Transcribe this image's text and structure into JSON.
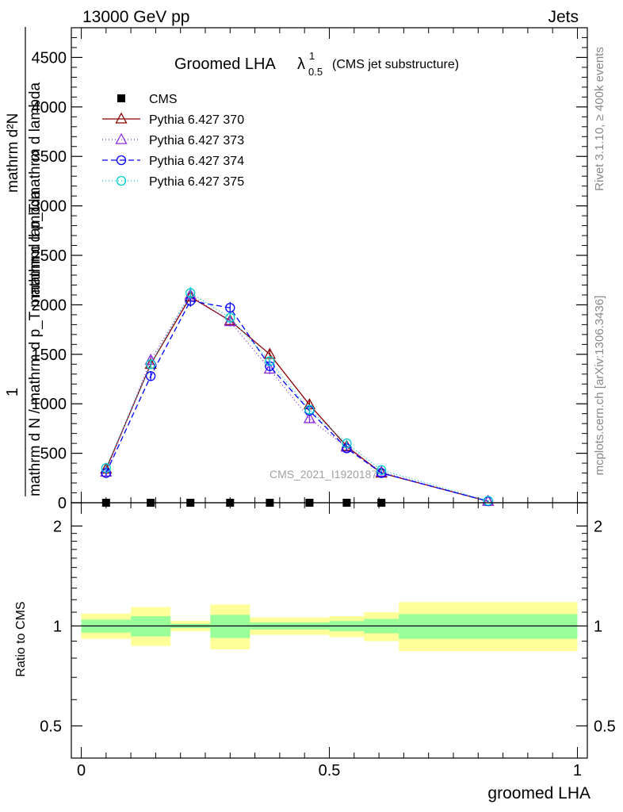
{
  "header": {
    "left": "13000 GeV pp",
    "right": "Jets"
  },
  "side_text": {
    "rivet": "Rivet 3.1.10, ≥ 400k events",
    "mcplots": "mcplots.cern.ch [arXiv:1306.3436]"
  },
  "watermark": "CMS_2021_I1920187",
  "chart_data": [
    {
      "type": "line",
      "title": {
        "main": "Groomed LHA",
        "lambda": "λ",
        "sup": "1",
        "sub": "0.5",
        "note": "(CMS jet substructure)"
      },
      "ylabel": {
        "numerator": "1",
        "denominator": "mathrm d N / mathrm d p_T mathrm d lambda",
        "right_numerator": "mathrm d²N",
        "right_denominator": "mathrm d p_T mathrm d lambda"
      },
      "ylim": [
        0,
        4800
      ],
      "yticks": [
        {
          "value": 0,
          "label": "0"
        },
        {
          "value": 500,
          "label": "500"
        },
        {
          "value": 1000,
          "label": "1000"
        },
        {
          "value": 1500,
          "label": "1500"
        },
        {
          "value": 2000,
          "label": "2000"
        },
        {
          "value": 2500,
          "label": "2500"
        },
        {
          "value": 3000,
          "label": "3000"
        },
        {
          "value": 3500,
          "label": "3500"
        },
        {
          "value": 4000,
          "label": "4000"
        },
        {
          "value": 4500,
          "label": "4500"
        }
      ],
      "xlim": [
        -0.02,
        1.02
      ],
      "legend_position": "top-left",
      "series": [
        {
          "name": "CMS",
          "color": "#000000",
          "marker": "filled-square",
          "x": [
            0.05,
            0.14,
            0.22,
            0.3,
            0.38,
            0.46,
            0.535,
            0.605
          ],
          "y": [
            0,
            0,
            0,
            0,
            0,
            0,
            0,
            0
          ]
        },
        {
          "name": "Pythia 6.427 370",
          "color": "#8b0000",
          "marker": "triangle",
          "dash": "",
          "x": [
            0.05,
            0.14,
            0.22,
            0.3,
            0.38,
            0.46,
            0.535,
            0.605,
            0.82
          ],
          "y": [
            340,
            1400,
            2080,
            1840,
            1500,
            990,
            570,
            300,
            15
          ],
          "err": [
            30,
            50,
            60,
            50,
            50,
            40,
            30,
            20,
            5
          ]
        },
        {
          "name": "Pythia 6.427 373",
          "color": "#8a2be2",
          "marker": "triangle",
          "dash": "1,3",
          "x": [
            0.05,
            0.14,
            0.22,
            0.3,
            0.38,
            0.46,
            0.535,
            0.605,
            0.82
          ],
          "y": [
            310,
            1440,
            2100,
            1830,
            1350,
            850,
            560,
            310,
            15
          ],
          "err": [
            30,
            50,
            60,
            50,
            50,
            40,
            30,
            20,
            5
          ]
        },
        {
          "name": "Pythia 6.427 374",
          "color": "#0000ff",
          "marker": "circle",
          "dash": "7,4",
          "x": [
            0.05,
            0.14,
            0.22,
            0.3,
            0.38,
            0.46,
            0.535,
            0.605,
            0.82
          ],
          "y": [
            300,
            1280,
            2040,
            1970,
            1380,
            930,
            550,
            300,
            15
          ],
          "err": [
            30,
            50,
            60,
            60,
            50,
            40,
            30,
            20,
            5
          ]
        },
        {
          "name": "Pythia 6.427 375",
          "color": "#00ced1",
          "marker": "circle",
          "dash": "1,3",
          "x": [
            0.05,
            0.14,
            0.22,
            0.3,
            0.38,
            0.46,
            0.535,
            0.605,
            0.82
          ],
          "y": [
            350,
            1400,
            2120,
            1870,
            1430,
            940,
            600,
            330,
            20
          ],
          "err": [
            30,
            50,
            60,
            50,
            50,
            40,
            30,
            20,
            5
          ]
        }
      ]
    },
    {
      "type": "area",
      "ylabel": "Ratio to CMS",
      "scale": "log",
      "ylim": [
        0.4,
        2.35
      ],
      "yticks": [
        {
          "value": 0.5,
          "label": "0.5"
        },
        {
          "value": 1,
          "label": "1"
        },
        {
          "value": 2,
          "label": "2"
        }
      ],
      "xlabel": "groomed LHA",
      "xlim": [
        -0.02,
        1.02
      ],
      "xticks": [
        {
          "value": 0,
          "label": "0"
        },
        {
          "value": 0.5,
          "label": "0.5"
        },
        {
          "value": 1,
          "label": "1"
        }
      ],
      "reference": 1,
      "colors": {
        "inner": "#99ff99",
        "outer": "#ffff99"
      },
      "bins": [
        {
          "lo": 0.0,
          "hi": 0.1,
          "inner": [
            0.955,
            1.045
          ],
          "outer": [
            0.915,
            1.09
          ]
        },
        {
          "lo": 0.1,
          "hi": 0.18,
          "inner": [
            0.93,
            1.07
          ],
          "outer": [
            0.87,
            1.14
          ]
        },
        {
          "lo": 0.18,
          "hi": 0.26,
          "inner": [
            0.985,
            1.015
          ],
          "outer": [
            0.965,
            1.035
          ]
        },
        {
          "lo": 0.26,
          "hi": 0.34,
          "inner": [
            0.92,
            1.08
          ],
          "outer": [
            0.85,
            1.16
          ]
        },
        {
          "lo": 0.34,
          "hi": 0.5,
          "inner": [
            0.975,
            1.025
          ],
          "outer": [
            0.94,
            1.06
          ]
        },
        {
          "lo": 0.5,
          "hi": 0.57,
          "inner": [
            0.965,
            1.035
          ],
          "outer": [
            0.925,
            1.07
          ]
        },
        {
          "lo": 0.57,
          "hi": 0.64,
          "inner": [
            0.95,
            1.05
          ],
          "outer": [
            0.9,
            1.1
          ]
        },
        {
          "lo": 0.64,
          "hi": 1.0,
          "inner": [
            0.915,
            1.085
          ],
          "outer": [
            0.84,
            1.18
          ]
        }
      ]
    }
  ]
}
